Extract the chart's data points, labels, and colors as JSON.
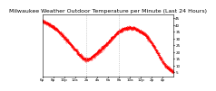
{
  "title": "Milwaukee Weather Outdoor Temperature per Minute (Last 24 Hours)",
  "title_fontsize": 4.5,
  "line_color": "red",
  "plot_bg_color": "#ffffff",
  "ylim": [
    2,
    48
  ],
  "xlim": [
    0,
    1440
  ],
  "vlines": [
    480,
    840
  ],
  "vline_color": "#aaaaaa",
  "vline_style": ":",
  "num_points": 1440,
  "x_tick_positions": [
    0,
    120,
    240,
    360,
    480,
    600,
    720,
    840,
    960,
    1080,
    1200,
    1320
  ],
  "x_tick_labels": [
    "6p",
    "8p",
    "10p",
    "12a",
    "2a",
    "4a",
    "6a",
    "8a",
    "10a",
    "12p",
    "2p",
    "4p"
  ],
  "y_ticks": [
    5,
    10,
    15,
    20,
    25,
    30,
    35,
    40,
    45
  ],
  "tick_fontsize": 3.0,
  "ctrl_t": [
    0,
    60,
    150,
    240,
    330,
    420,
    480,
    540,
    600,
    660,
    720,
    780,
    840,
    900,
    960,
    1020,
    1080,
    1140,
    1200,
    1260,
    1320,
    1380,
    1440
  ],
  "ctrl_v": [
    43,
    41,
    37,
    31,
    24,
    17,
    14,
    16,
    19,
    23,
    27,
    31,
    35,
    37,
    38,
    37,
    35,
    32,
    27,
    20,
    13,
    8,
    5
  ]
}
